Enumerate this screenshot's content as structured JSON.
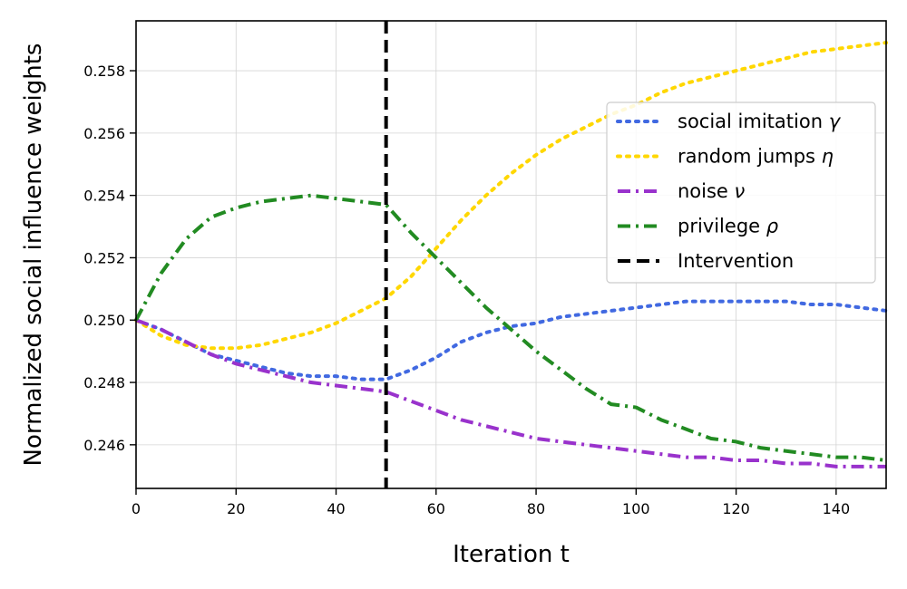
{
  "chart_data": {
    "type": "line",
    "title": "",
    "xlabel": "Iteration t",
    "ylabel": "Normalized social influence weights",
    "xlim": [
      0,
      150
    ],
    "ylim": [
      0.2446,
      0.2596
    ],
    "xticks": [
      0,
      20,
      40,
      60,
      80,
      100,
      120,
      140
    ],
    "xtick_labels": [
      "0",
      "20",
      "40",
      "60",
      "80",
      "100",
      "120",
      "140"
    ],
    "yticks": [
      0.246,
      0.248,
      0.25,
      0.252,
      0.254,
      0.256,
      0.258
    ],
    "ytick_labels": [
      "0.246",
      "0.248",
      "0.250",
      "0.252",
      "0.254",
      "0.256",
      "0.258"
    ],
    "grid": true,
    "legend_position": "right",
    "x": [
      0,
      5,
      10,
      15,
      20,
      25,
      30,
      35,
      40,
      45,
      50,
      55,
      60,
      65,
      70,
      75,
      80,
      85,
      90,
      95,
      100,
      105,
      110,
      115,
      120,
      125,
      130,
      135,
      140,
      145,
      150
    ],
    "series": [
      {
        "name": "social imitation",
        "symbol": "γ",
        "color": "#4169e1",
        "style": "dotted",
        "values": [
          0.25,
          0.2497,
          0.2493,
          0.2489,
          0.2487,
          0.2485,
          0.2483,
          0.2482,
          0.2482,
          0.2481,
          0.2481,
          0.2484,
          0.2488,
          0.2493,
          0.2496,
          0.2498,
          0.2499,
          0.2501,
          0.2502,
          0.2503,
          0.2504,
          0.2505,
          0.2506,
          0.2506,
          0.2506,
          0.2506,
          0.2506,
          0.2505,
          0.2505,
          0.2504,
          0.2503
        ]
      },
      {
        "name": "random jumps",
        "symbol": "η",
        "color": "#ffd700",
        "style": "dotted",
        "values": [
          0.25,
          0.2495,
          0.2492,
          0.2491,
          0.2491,
          0.2492,
          0.2494,
          0.2496,
          0.2499,
          0.2503,
          0.2507,
          0.2514,
          0.2523,
          0.2532,
          0.254,
          0.2547,
          0.2553,
          0.2558,
          0.2562,
          0.2566,
          0.2569,
          0.2573,
          0.2576,
          0.2578,
          0.258,
          0.2582,
          0.2584,
          0.2586,
          0.2587,
          0.2588,
          0.2589
        ]
      },
      {
        "name": "noise",
        "symbol": "ν",
        "color": "#9932cc",
        "style": "dashdot",
        "values": [
          0.25,
          0.2497,
          0.2493,
          0.2489,
          0.2486,
          0.2484,
          0.2482,
          0.248,
          0.2479,
          0.2478,
          0.2477,
          0.2474,
          0.2471,
          0.2468,
          0.2466,
          0.2464,
          0.2462,
          0.2461,
          0.246,
          0.2459,
          0.2458,
          0.2457,
          0.2456,
          0.2456,
          0.2455,
          0.2455,
          0.2454,
          0.2454,
          0.2453,
          0.2453,
          0.2453
        ]
      },
      {
        "name": "privilege",
        "symbol": "ρ",
        "color": "#228b22",
        "style": "dashdot",
        "values": [
          0.25,
          0.2515,
          0.2526,
          0.2533,
          0.2536,
          0.2538,
          0.2539,
          0.254,
          0.2539,
          0.2538,
          0.2537,
          0.2528,
          0.252,
          0.2512,
          0.2504,
          0.2497,
          0.249,
          0.2484,
          0.2478,
          0.2473,
          0.2472,
          0.2468,
          0.2465,
          0.2462,
          0.2461,
          0.2459,
          0.2458,
          0.2457,
          0.2456,
          0.2456,
          0.2455
        ]
      }
    ],
    "vline": {
      "name": "Intervention",
      "x": 50,
      "color": "#000000",
      "style": "dashed"
    }
  }
}
